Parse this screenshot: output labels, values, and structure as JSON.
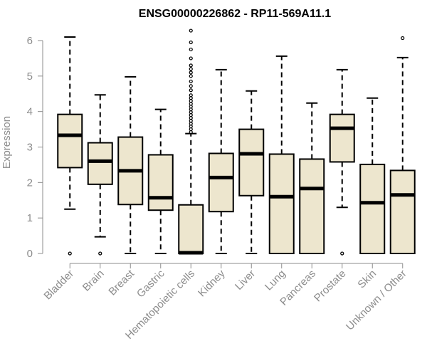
{
  "chart_data": {
    "type": "box",
    "title": "ENSG00000226862 - RP11-569A11.1",
    "xlabel": "",
    "ylabel": "Expression",
    "ylim": [
      0,
      6.3
    ],
    "yticks": [
      0,
      1,
      2,
      3,
      4,
      5,
      6
    ],
    "box_fill": "#ede6ce",
    "categories": [
      "Bladder",
      "Brain",
      "Breast",
      "Gastric",
      "Hematopoietic cells",
      "Kidney",
      "Liver",
      "Lung",
      "Pancreas",
      "Prostate",
      "Skin",
      "Unknown / Other"
    ],
    "series": [
      {
        "name": "Bladder",
        "whisker_low": 1.25,
        "q1": 2.42,
        "median": 3.33,
        "q3": 3.92,
        "whisker_high": 6.1,
        "outliers": [
          0
        ]
      },
      {
        "name": "Brain",
        "whisker_low": 0.47,
        "q1": 1.95,
        "median": 2.6,
        "q3": 3.12,
        "whisker_high": 4.47,
        "outliers": [
          0
        ]
      },
      {
        "name": "Breast",
        "whisker_low": 0,
        "q1": 1.38,
        "median": 2.33,
        "q3": 3.28,
        "whisker_high": 4.98,
        "outliers": []
      },
      {
        "name": "Gastric",
        "whisker_low": 0,
        "q1": 1.22,
        "median": 1.57,
        "q3": 2.78,
        "whisker_high": 4.06,
        "outliers": []
      },
      {
        "name": "Hematopoietic cells",
        "whisker_low": 0,
        "q1": 0,
        "median": 0.02,
        "q3": 1.37,
        "whisker_high": 3.38,
        "outliers": [
          3.42,
          3.5,
          3.58,
          3.66,
          3.74,
          3.82,
          3.9,
          3.98,
          4.06,
          4.14,
          4.22,
          4.3,
          4.38,
          4.46,
          4.6,
          4.72,
          4.85,
          5.0,
          5.1,
          5.2,
          5.3,
          5.5,
          5.75,
          5.95,
          6.28
        ]
      },
      {
        "name": "Kidney",
        "whisker_low": 0,
        "q1": 1.18,
        "median": 2.14,
        "q3": 2.82,
        "whisker_high": 5.18,
        "outliers": []
      },
      {
        "name": "Liver",
        "whisker_low": 0,
        "q1": 1.63,
        "median": 2.81,
        "q3": 3.5,
        "whisker_high": 4.58,
        "outliers": []
      },
      {
        "name": "Lung",
        "whisker_low": 0,
        "q1": 0,
        "median": 1.6,
        "q3": 2.8,
        "whisker_high": 5.56,
        "outliers": []
      },
      {
        "name": "Pancreas",
        "whisker_low": 0,
        "q1": 0,
        "median": 1.83,
        "q3": 2.66,
        "whisker_high": 4.24,
        "outliers": []
      },
      {
        "name": "Prostate",
        "whisker_low": 1.3,
        "q1": 2.58,
        "median": 3.53,
        "q3": 3.92,
        "whisker_high": 5.18,
        "outliers": [
          0
        ]
      },
      {
        "name": "Skin",
        "whisker_low": 0,
        "q1": 0,
        "median": 1.43,
        "q3": 2.51,
        "whisker_high": 4.38,
        "outliers": []
      },
      {
        "name": "Unknown / Other",
        "whisker_low": 0,
        "q1": 0,
        "median": 1.65,
        "q3": 2.34,
        "whisker_high": 5.52,
        "outliers": [
          6.07
        ]
      }
    ]
  }
}
